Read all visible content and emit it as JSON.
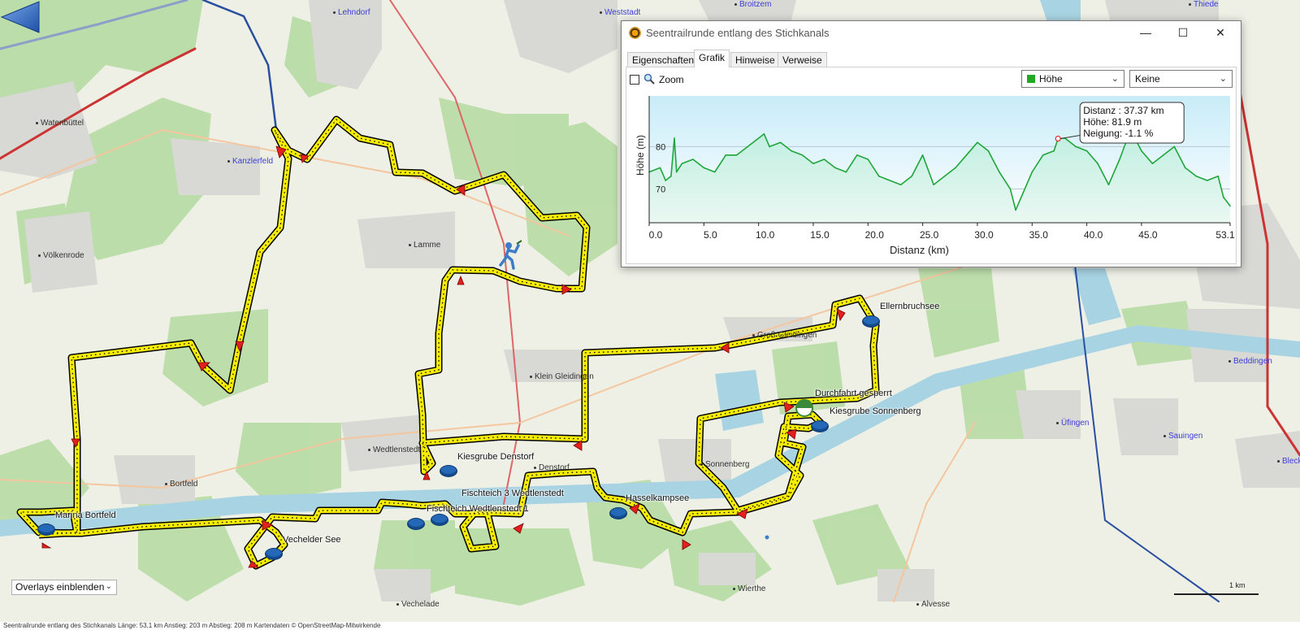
{
  "map": {
    "places": [
      {
        "name": "Lehndorf",
        "blue": true
      },
      {
        "name": "Weststadt",
        "blue": true
      },
      {
        "name": "Broitzem",
        "blue": true
      },
      {
        "name": "Thiede",
        "blue": true
      },
      {
        "name": "Watenbüttel",
        "blue": false
      },
      {
        "name": "Kanzlerfeld",
        "blue": true
      },
      {
        "name": "Völkenrode",
        "blue": false
      },
      {
        "name": "Lamme",
        "blue": false
      },
      {
        "name": "Groß Gleidingen",
        "blue": false
      },
      {
        "name": "Klein Gleidingen",
        "blue": false
      },
      {
        "name": "Wedtlenstedt",
        "blue": false
      },
      {
        "name": "Denstorf",
        "blue": false
      },
      {
        "name": "Bortfeld",
        "blue": false
      },
      {
        "name": "Sonnenberg",
        "blue": false
      },
      {
        "name": "Üfingen",
        "blue": true
      },
      {
        "name": "Sauingen",
        "blue": true
      },
      {
        "name": "Beddingen",
        "blue": true
      },
      {
        "name": "Bleck",
        "blue": true
      },
      {
        "name": "Wierthe",
        "blue": false
      },
      {
        "name": "Vechelade",
        "blue": false
      },
      {
        "name": "Alvesse",
        "blue": false
      }
    ],
    "pois": [
      "Ellernbruchsee",
      "Durchfahrt gesperrt",
      "Kiesgrube Sonnenberg",
      "Kiesgrube Denstorf",
      "Fischteich 3 Wedtlenstedt",
      "Fischteich Wedtlenstedt 1",
      "Hasselkampsee",
      "Marina Bortfeld",
      "Vechelder See"
    ],
    "overlay_select": "Overlays einblenden",
    "scale_label": "1 km",
    "status_text": "Seentrailrunde entlang des Stichkanals  Länge: 53,1 km  Anstieg: 203 m  Abstieg: 208 m  Kartendaten © OpenStreetMap-Mitwirkende",
    "route_color": "#f5ec00"
  },
  "dialog": {
    "title": "Seentrailrunde entlang des Stichkanals",
    "window_buttons": {
      "minimize": "—",
      "maximize": "☐",
      "close": "✕"
    },
    "tabs": [
      "Eigenschaften",
      "Grafik",
      "Hinweise",
      "Verweise"
    ],
    "active_tab": "Grafik",
    "zoom_label": "Zoom",
    "combo_left": "Höhe",
    "combo_right": "Keine",
    "combo_left_color": "#22a822"
  },
  "chart_data": {
    "type": "area",
    "xlabel": "Distanz  (km)",
    "ylabel": "Höhe (m)",
    "xlim": [
      0,
      53.1
    ],
    "ylim": [
      62,
      92
    ],
    "x_ticks": [
      "0.0",
      "5.0",
      "10.0",
      "15.0",
      "20.0",
      "25.0",
      "30.0",
      "35.0",
      "40.0",
      "45.0",
      "53.1"
    ],
    "x_tick_values": [
      0,
      5,
      10,
      15,
      20,
      25,
      30,
      35,
      40,
      45,
      53.1
    ],
    "y_ticks": [
      "70",
      "80"
    ],
    "y_tick_values": [
      70,
      80
    ],
    "line_color": "#1fa63a",
    "series": [
      {
        "x": [
          0,
          1,
          1.5,
          2,
          2.3,
          2.5,
          3,
          4,
          5,
          6,
          7,
          8,
          9,
          10,
          10.5,
          11,
          12,
          13,
          14,
          15,
          16,
          17,
          18,
          19,
          20,
          21,
          22,
          23,
          24,
          25,
          26,
          27,
          28,
          29,
          30,
          31,
          32,
          33,
          33.5,
          34,
          35,
          36,
          37,
          37.37,
          38,
          39,
          40,
          41,
          42,
          43,
          44,
          45,
          46,
          47,
          48,
          49,
          50,
          51,
          52,
          52.5,
          53.1
        ],
        "y": [
          74,
          75,
          72,
          73,
          82,
          74,
          76,
          77,
          75,
          74,
          78,
          78,
          80,
          82,
          83,
          80,
          81,
          79,
          78,
          76,
          77,
          75,
          74,
          78,
          77,
          73,
          72,
          71,
          73,
          78,
          71,
          73,
          75,
          78,
          81,
          79,
          74,
          70,
          65,
          68,
          74,
          78,
          79,
          81.9,
          82,
          80,
          79,
          76,
          71,
          77,
          84,
          79,
          76,
          78,
          80,
          75,
          73,
          72,
          73,
          68,
          66
        ]
      }
    ],
    "tooltip": {
      "line1": "Distanz  : 37.37 km",
      "line2": "Höhe: 81.9 m",
      "line3": "Neigung: -1.1 %",
      "x": 37.37,
      "y": 81.9
    }
  }
}
